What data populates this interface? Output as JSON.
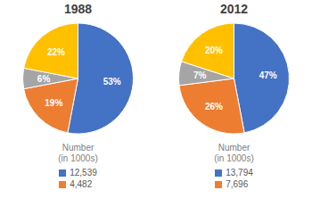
{
  "chart_data": [
    {
      "type": "pie",
      "title": "1988",
      "values": [
        53,
        19,
        6,
        22
      ],
      "value_labels": [
        "53%",
        "19%",
        "6%",
        "22%"
      ],
      "colors": [
        "#4472C4",
        "#ED7D31",
        "#A5A5A5",
        "#FFC000"
      ],
      "data_labels": true,
      "legend_title": "Number\n(in 1000s)",
      "legend_entries": [
        {
          "name": "12,539",
          "color": "#4472C4"
        },
        {
          "name": "4,482",
          "color": "#ED7D31"
        }
      ]
    },
    {
      "type": "pie",
      "title": "2012",
      "values": [
        47,
        26,
        7,
        20
      ],
      "value_labels": [
        "47%",
        "26%",
        "7%",
        "20%"
      ],
      "colors": [
        "#4472C4",
        "#ED7D31",
        "#A5A5A5",
        "#FFC000"
      ],
      "data_labels": true,
      "legend_title": "Number\n(in 1000s)",
      "legend_entries": [
        {
          "name": "13,794",
          "color": "#4472C4"
        },
        {
          "name": "7,696",
          "color": "#ED7D31"
        }
      ]
    }
  ]
}
